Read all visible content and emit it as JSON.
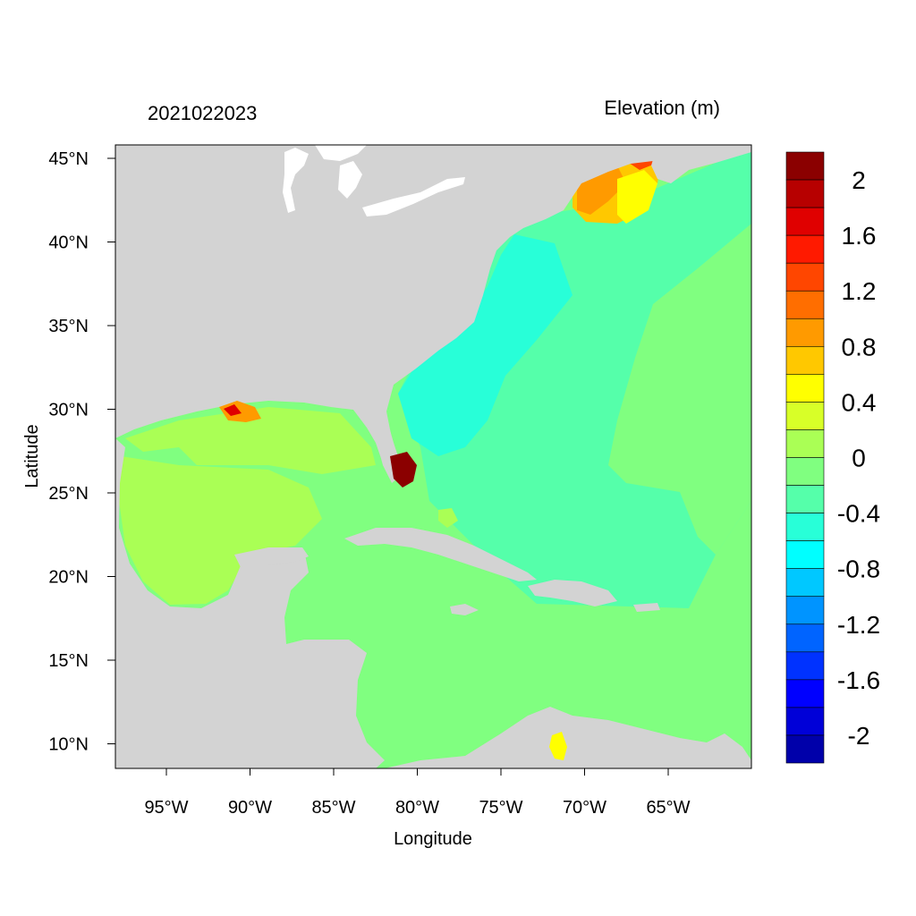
{
  "header": {
    "timestamp": "2021022023",
    "variable_title": "Elevation (m)"
  },
  "map": {
    "xlabel": "Longitude",
    "ylabel": "Latitude",
    "lon_ticks": [
      "95°W",
      "90°W",
      "85°W",
      "80°W",
      "75°W",
      "70°W",
      "65°W"
    ],
    "lat_ticks": [
      "45°N",
      "40°N",
      "35°N",
      "30°N",
      "25°N",
      "20°N",
      "15°N",
      "10°N"
    ],
    "land_color": "#d3d3d3",
    "water_color": "#ffffff"
  },
  "colorbar": {
    "labels": [
      "2",
      "1.6",
      "1.2",
      "0.8",
      "0.4",
      "0",
      "-0.4",
      "-0.8",
      "-1.2",
      "-1.6",
      "-2"
    ],
    "colors": [
      "#8b0000",
      "#b70000",
      "#e00000",
      "#ff1a00",
      "#ff4600",
      "#ff6e00",
      "#ff9a00",
      "#ffc800",
      "#ffff00",
      "#d8ff28",
      "#aaff55",
      "#80ff80",
      "#55ffaa",
      "#28ffd8",
      "#00ffff",
      "#00c8ff",
      "#0094ff",
      "#0064ff",
      "#0032ff",
      "#0000ff",
      "#0000d8",
      "#0000aa"
    ]
  }
}
